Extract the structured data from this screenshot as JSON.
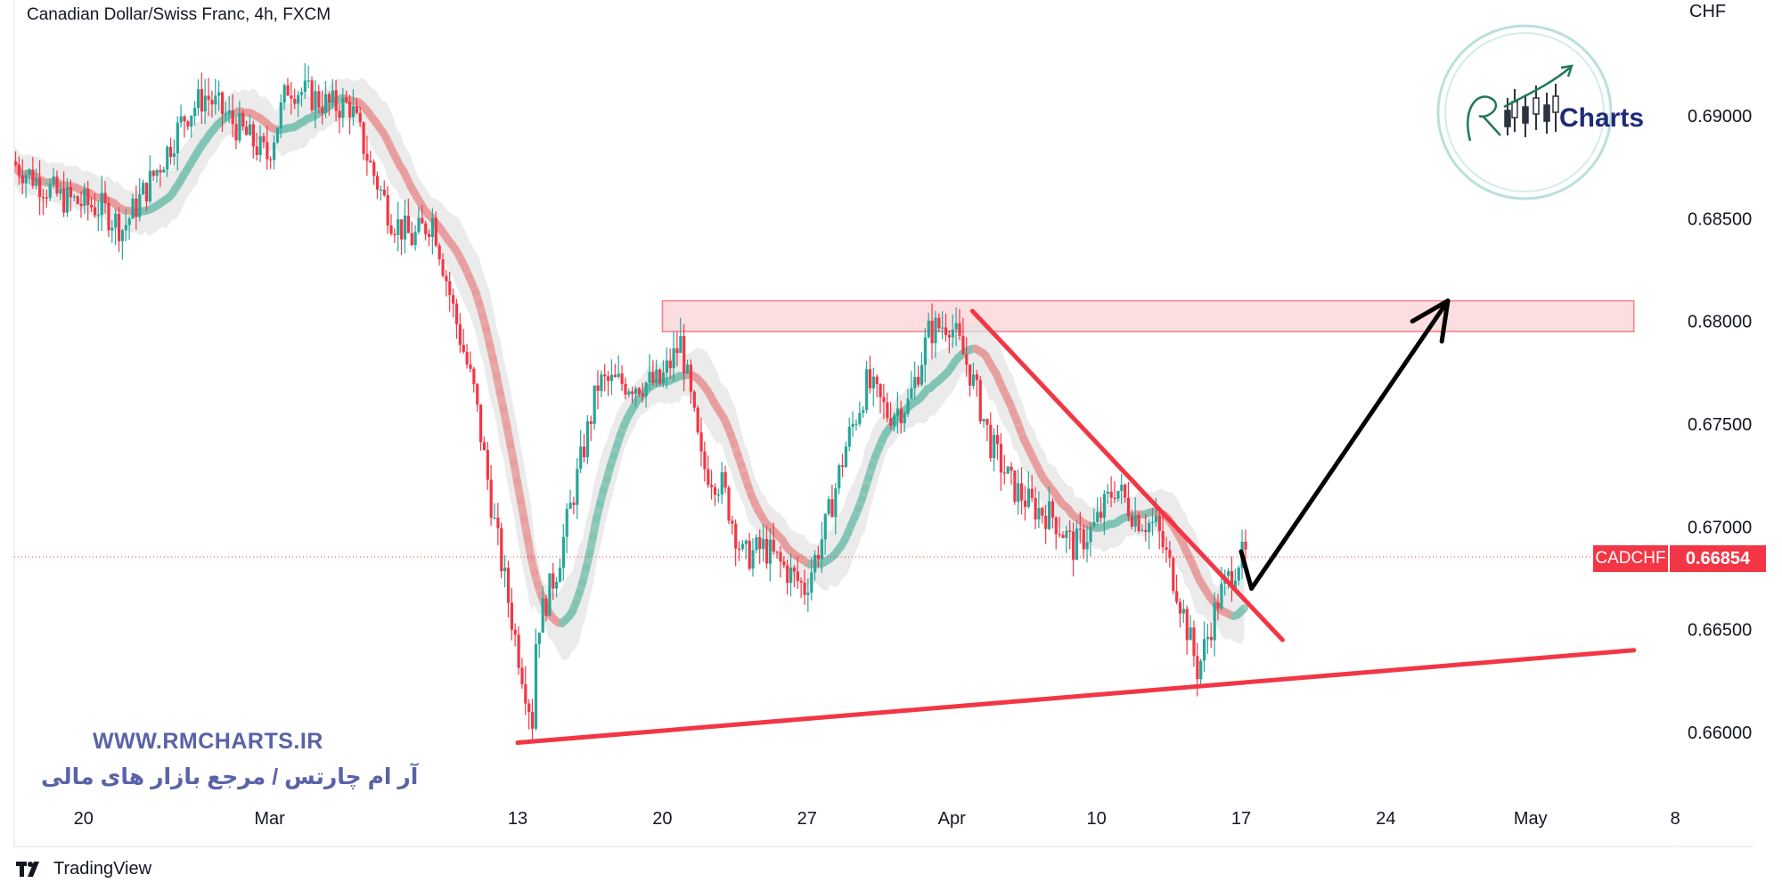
{
  "header": {
    "title": "Canadian Dollar/Swiss Franc, 4h, FXCM"
  },
  "price_axis": {
    "currency": "CHF",
    "ticks": [
      "0.69000",
      "0.68500",
      "0.68000",
      "0.67500",
      "0.67000",
      "0.66500",
      "0.66000"
    ]
  },
  "current_price": {
    "symbol": "CADCHF",
    "value": "0.66854"
  },
  "watermark": {
    "site": "WWW.RMCHARTS.IR",
    "tagline": "آر ام چارتس / مرجع بازار های مالی",
    "logo_text": "Charts"
  },
  "footer": {
    "brand": "TradingView",
    "brand_icon": "tradingview-logo-icon"
  },
  "colors": {
    "up": "#26a69a",
    "down": "#f23645",
    "ema_up": "#7fc3b4",
    "ema_down": "#e89c9c",
    "band": "#e3e3e3",
    "zone_fill": "#fbd2d6",
    "zone_border": "#f23645",
    "trendline": "#f23645",
    "arrow": "#000000",
    "watermark": "#5a62a8"
  },
  "chart_data": {
    "type": "candlestick",
    "title": "Canadian Dollar/Swiss Franc, 4h, FXCM",
    "ylabel": "CHF",
    "ylim": [
      0.6573,
      0.6955
    ],
    "x_ticks": [
      {
        "label": "20",
        "date": "2023-02-20"
      },
      {
        "label": "Mar",
        "date": "2023-03-01"
      },
      {
        "label": "13",
        "date": "2023-03-13"
      },
      {
        "label": "20",
        "date": "2023-03-20"
      },
      {
        "label": "27",
        "date": "2023-03-27"
      },
      {
        "label": "Apr",
        "date": "2023-04-03"
      },
      {
        "label": "10",
        "date": "2023-04-10"
      },
      {
        "label": "17",
        "date": "2023-04-17"
      },
      {
        "label": "24",
        "date": "2023-04-24"
      },
      {
        "label": "May",
        "date": "2023-05-01"
      },
      {
        "label": "8",
        "date": "2023-05-08"
      }
    ],
    "price_path": [
      [
        "2023-02-15",
        0.689
      ],
      [
        "2023-02-17",
        0.6875
      ],
      [
        "2023-02-19",
        0.686
      ],
      [
        "2023-02-21",
        0.6855
      ],
      [
        "2023-02-22",
        0.6845
      ],
      [
        "2023-02-24",
        0.688
      ],
      [
        "2023-02-25",
        0.69
      ],
      [
        "2023-02-26",
        0.691
      ],
      [
        "2023-02-28",
        0.689
      ],
      [
        "2023-03-01",
        0.688
      ],
      [
        "2023-03-02",
        0.6915
      ],
      [
        "2023-03-04",
        0.6905
      ],
      [
        "2023-03-05",
        0.6905
      ],
      [
        "2023-03-06",
        0.6875
      ],
      [
        "2023-03-07",
        0.685
      ],
      [
        "2023-03-08",
        0.684
      ],
      [
        "2023-03-09",
        0.685
      ],
      [
        "2023-03-10",
        0.6805
      ],
      [
        "2023-03-11",
        0.6765
      ],
      [
        "2023-03-12",
        0.67
      ],
      [
        "2023-03-13",
        0.6645
      ],
      [
        "2023-03-13T20",
        0.6605
      ],
      [
        "2023-03-14",
        0.665
      ],
      [
        "2023-03-15",
        0.668
      ],
      [
        "2023-03-16",
        0.6725
      ],
      [
        "2023-03-17",
        0.677
      ],
      [
        "2023-03-18",
        0.677
      ],
      [
        "2023-03-20",
        0.677
      ],
      [
        "2023-03-21",
        0.679
      ],
      [
        "2023-03-22",
        0.673
      ],
      [
        "2023-03-23",
        0.672
      ],
      [
        "2023-03-24",
        0.6685
      ],
      [
        "2023-03-25",
        0.669
      ],
      [
        "2023-03-27",
        0.667
      ],
      [
        "2023-03-28",
        0.67
      ],
      [
        "2023-03-29",
        0.674
      ],
      [
        "2023-03-30",
        0.677
      ],
      [
        "2023-03-31",
        0.6755
      ],
      [
        "2023-04-01",
        0.676
      ],
      [
        "2023-04-02",
        0.6795
      ],
      [
        "2023-04-03",
        0.68
      ],
      [
        "2023-04-04",
        0.6775
      ],
      [
        "2023-04-05",
        0.674
      ],
      [
        "2023-04-06",
        0.672
      ],
      [
        "2023-04-07",
        0.671
      ],
      [
        "2023-04-08",
        0.6705
      ],
      [
        "2023-04-09",
        0.669
      ],
      [
        "2023-04-10",
        0.67
      ],
      [
        "2023-04-11",
        0.672
      ],
      [
        "2023-04-12",
        0.6705
      ],
      [
        "2023-04-13",
        0.67
      ],
      [
        "2023-04-14",
        0.667
      ],
      [
        "2023-04-15",
        0.663
      ],
      [
        "2023-04-16",
        0.6665
      ],
      [
        "2023-04-17",
        0.6685
      ]
    ],
    "annotations": {
      "resistance_zone": {
        "x_start": "2023-03-20",
        "x_end": "2023-05-06",
        "y_low": 0.6795,
        "y_high": 0.681
      },
      "descending_trendline": {
        "from": [
          "2023-04-04",
          0.6805
        ],
        "to": [
          "2023-04-19",
          0.6645
        ]
      },
      "ascending_trendline": {
        "from": [
          "2023-03-13",
          0.6595
        ],
        "to": [
          "2023-05-06",
          0.664
        ]
      },
      "projection_arrow": [
        [
          "2023-04-17",
          0.6688
        ],
        [
          "2023-04-17T12",
          0.667
        ],
        [
          "2023-04-27",
          0.681
        ]
      ],
      "current_price_line": 0.66854
    },
    "grid": false,
    "legend": "none"
  }
}
